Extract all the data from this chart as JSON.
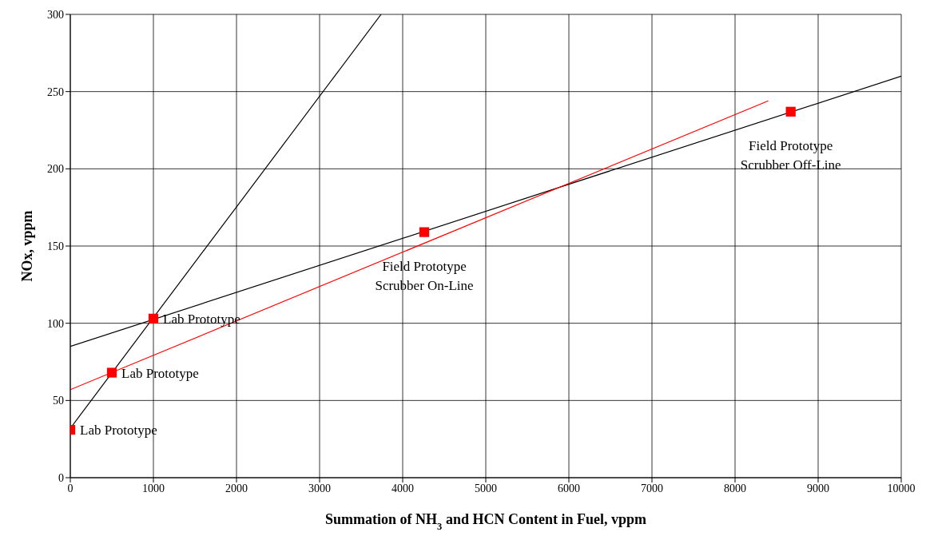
{
  "chart_data": {
    "type": "scatter",
    "xlabel": "Summation of NH$_{3}$ and HCN Content in Fuel, vppm",
    "ylabel": "NOx, vppm",
    "xlim": [
      0,
      10000
    ],
    "xticks": [
      0,
      1000,
      2000,
      3000,
      4000,
      5000,
      6000,
      7000,
      8000,
      9000,
      10000
    ],
    "ylim": [
      0,
      300
    ],
    "yticks": [
      0,
      50,
      100,
      150,
      200,
      250,
      300
    ],
    "grid": true,
    "series": [
      {
        "type": "line",
        "marker": "none",
        "color": "#000000",
        "x": [
          0,
          3740
        ],
        "values": [
          32,
          300
        ]
      },
      {
        "type": "line",
        "marker": "none",
        "color": "#000000",
        "x": [
          0,
          10000
        ],
        "values": [
          85,
          260
        ]
      },
      {
        "type": "line",
        "marker": "none",
        "color": "#ff0000",
        "x": [
          0,
          8400
        ],
        "values": [
          57,
          244
        ]
      },
      {
        "marker": "square",
        "color": "#ff0000",
        "x": [
          0,
          500,
          1000,
          4260,
          8670
        ],
        "values": [
          31,
          68,
          103,
          159,
          237
        ]
      }
    ],
    "annotations": [
      {
        "text": "Lab Prototype",
        "x": 0,
        "y": 31
      },
      {
        "text": "Lab Prototype",
        "x": 500,
        "y": 68
      },
      {
        "text": "Lab Prototype",
        "x": 1000,
        "y": 103
      },
      {
        "text": "Field Prototype\nScrubber On-Line",
        "x": 4260,
        "y": 159
      },
      {
        "text": "Field Prototype\nScrubber Off-Line",
        "x": 8670,
        "y": 237
      }
    ]
  }
}
